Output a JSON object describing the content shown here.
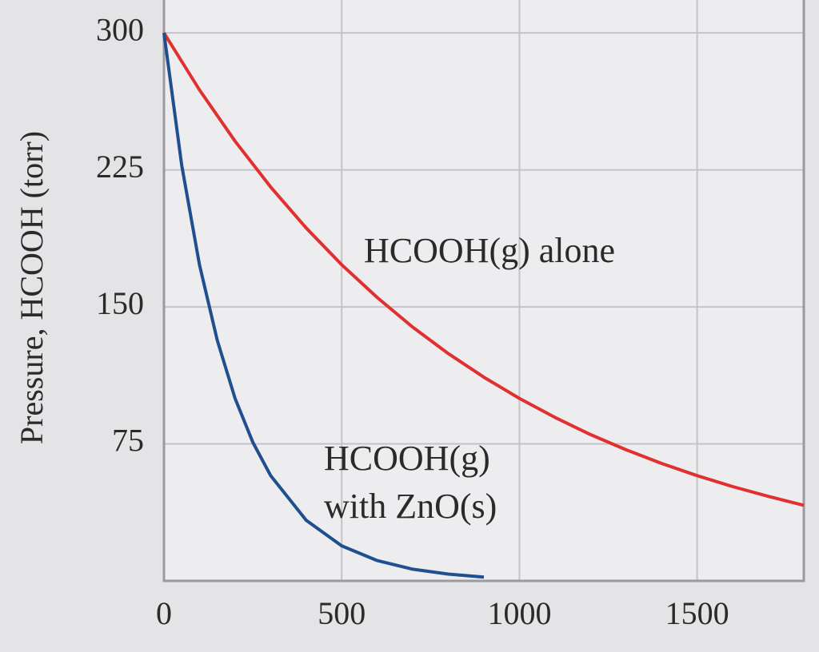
{
  "chart_data": {
    "type": "line",
    "y_label": "Pressure, HCOOH (torr)",
    "xlim": [
      0,
      1800
    ],
    "ylim": [
      0,
      318
    ],
    "xticks": [
      0,
      500,
      1000,
      1500
    ],
    "yticks": [
      75,
      150,
      225,
      300
    ],
    "grid": true,
    "series": [
      {
        "name": "HCOOH(g) alone",
        "color": "#e03030",
        "x": [
          0,
          100,
          200,
          300,
          400,
          500,
          600,
          700,
          800,
          900,
          1000,
          1100,
          1200,
          1300,
          1400,
          1500,
          1600,
          1700,
          1800
        ],
        "values": [
          300,
          268.8,
          240.7,
          215.7,
          193.2,
          173.1,
          155.1,
          138.9,
          124.4,
          111.5,
          99.9,
          89.5,
          80.1,
          71.8,
          64.3,
          57.6,
          51.6,
          46.3,
          41.4
        ]
      },
      {
        "name": "HCOOH(g) with ZnO(s)",
        "color": "#1f4f8f",
        "x": [
          0,
          50,
          100,
          150,
          200,
          250,
          300,
          400,
          500,
          600,
          700,
          800,
          900
        ],
        "values": [
          300,
          227.5,
          173.1,
          131.6,
          99.9,
          75.9,
          57.7,
          33.2,
          19.2,
          11.1,
          6.4,
          3.7,
          2.1
        ]
      }
    ],
    "annotations": [
      {
        "lines": [
          "HCOOH(g) alone"
        ]
      },
      {
        "lines": [
          "HCOOH(g)",
          "with ZnO(s)"
        ]
      }
    ]
  }
}
